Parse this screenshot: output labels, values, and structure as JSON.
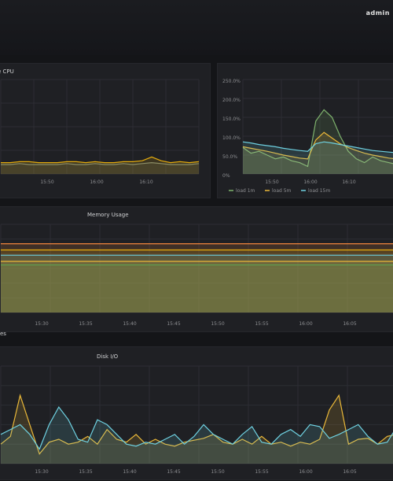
{
  "topbar": {
    "label": "admin"
  },
  "cpu_panel": {
    "title": "e CPU",
    "chart_data": {
      "type": "area",
      "x_ticks": [
        "15:50",
        "16:00",
        "16:10"
      ],
      "series": [
        {
          "color": "#e5ac0e",
          "values": [
            12,
            12,
            13,
            13,
            12,
            12,
            12,
            13,
            13,
            12,
            13,
            12,
            12,
            13,
            13,
            14,
            18,
            14,
            12,
            13,
            12,
            13
          ]
        },
        {
          "color": "#8d8e66",
          "values": [
            10,
            10,
            11,
            10,
            10,
            10,
            10,
            11,
            10,
            10,
            11,
            10,
            10,
            11,
            10,
            11,
            12,
            11,
            10,
            10,
            10,
            11
          ]
        }
      ],
      "ylim": [
        0,
        100
      ]
    }
  },
  "load_panel": {
    "y_ticks": [
      "250.0%",
      "200.0%",
      "150.0%",
      "100.0%",
      "50.0%",
      "0%"
    ],
    "x_ticks": [
      "15:50",
      "16:00",
      "16:10"
    ],
    "chart_data": {
      "type": "line",
      "ylim": [
        0,
        250
      ],
      "series": [
        {
          "name": "load 1m",
          "color": "#7eb26d",
          "values": [
            70,
            55,
            60,
            50,
            40,
            45,
            35,
            30,
            20,
            140,
            170,
            150,
            100,
            60,
            40,
            30,
            45,
            35,
            30,
            25
          ]
        },
        {
          "name": "load 5m",
          "color": "#eab839",
          "values": [
            72,
            68,
            64,
            60,
            55,
            50,
            46,
            42,
            40,
            90,
            110,
            95,
            80,
            70,
            62,
            55,
            50,
            46,
            42,
            40
          ]
        },
        {
          "name": "load 15m",
          "color": "#6ed0e0",
          "values": [
            85,
            82,
            78,
            75,
            72,
            68,
            65,
            62,
            60,
            80,
            85,
            82,
            78,
            74,
            70,
            66,
            62,
            60,
            58,
            56
          ]
        }
      ]
    }
  },
  "memory_panel": {
    "title": "Memory Usage",
    "x_ticks": [
      "15:30",
      "15:35",
      "15:40",
      "15:45",
      "15:50",
      "15:55",
      "16:00",
      "16:05"
    ],
    "chart_data": {
      "type": "line",
      "ylim": [
        0,
        100
      ],
      "series": [
        {
          "color": "#ef843c",
          "values": [
            78,
            78,
            78,
            78,
            78,
            78,
            78,
            78
          ]
        },
        {
          "color": "#e5ac0e",
          "values": [
            71,
            71,
            71,
            71,
            71,
            71,
            71,
            71
          ]
        },
        {
          "color": "#6ed0e0",
          "values": [
            65,
            65,
            65,
            65,
            65,
            65,
            65,
            65
          ]
        },
        {
          "color": "#eab839",
          "values": [
            58,
            58,
            58,
            58,
            58,
            58,
            58,
            58
          ]
        },
        {
          "color": "#629e51",
          "values": [
            54,
            54,
            54,
            54,
            54,
            54,
            54,
            54
          ]
        }
      ]
    }
  },
  "row_title": "es",
  "disk_panel": {
    "title": "Disk I/O",
    "x_ticks": [
      "15:30",
      "15:35",
      "15:40",
      "15:45",
      "15:50",
      "15:55",
      "16:00",
      "16:05"
    ],
    "chart_data": {
      "type": "area",
      "ylim": [
        0,
        100
      ],
      "series": [
        {
          "color": "#eab839",
          "values": [
            20,
            28,
            70,
            40,
            10,
            22,
            25,
            20,
            22,
            28,
            20,
            35,
            25,
            22,
            30,
            20,
            25,
            20,
            18,
            22,
            24,
            26,
            30,
            22,
            20,
            25,
            20,
            28,
            20,
            22,
            18,
            22,
            20,
            25,
            55,
            70,
            20,
            25,
            26,
            20,
            28,
            30
          ]
        },
        {
          "color": "#6ed0e0",
          "values": [
            30,
            35,
            40,
            30,
            15,
            40,
            58,
            45,
            25,
            22,
            45,
            40,
            30,
            20,
            18,
            22,
            20,
            25,
            30,
            20,
            28,
            40,
            30,
            25,
            20,
            30,
            38,
            22,
            20,
            30,
            35,
            28,
            40,
            38,
            26,
            30,
            35,
            40,
            28,
            20,
            22,
            38
          ]
        }
      ]
    }
  }
}
